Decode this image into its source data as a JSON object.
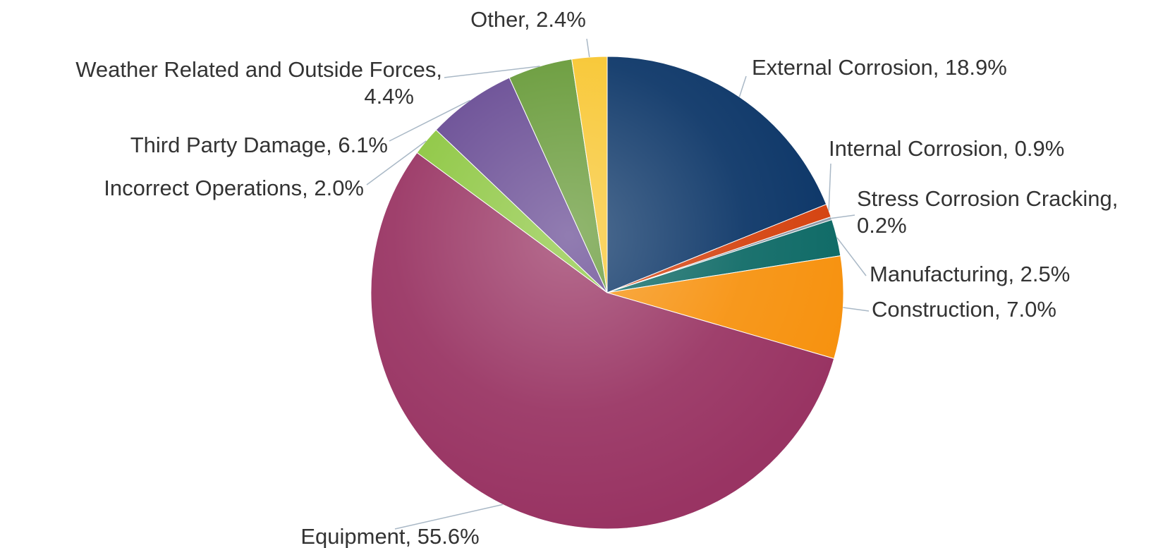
{
  "chart_data": {
    "type": "pie",
    "value_labels": [
      "External Corrosion, 18.9%",
      "Internal Corrosion, 0.9%",
      "Stress Corrosion Cracking, 0.2%",
      "Manufacturing, 2.5%",
      "Construction, 7.0%",
      "Equipment, 55.6%",
      "Incorrect Operations, 2.0%",
      "Third Party Damage, 6.1%",
      "Weather Related and Outside Forces, 4.4%",
      "Other, 2.4%"
    ],
    "values": [
      18.9,
      0.9,
      0.2,
      2.5,
      7.0,
      55.6,
      2.0,
      6.1,
      4.4,
      2.4
    ],
    "colors": [
      "#0b3567",
      "#d4420f",
      "#8d9aa8",
      "#0e6a66",
      "#f7920f",
      "#993463",
      "#8cc63f",
      "#674a93",
      "#679a38",
      "#f8c630"
    ]
  }
}
